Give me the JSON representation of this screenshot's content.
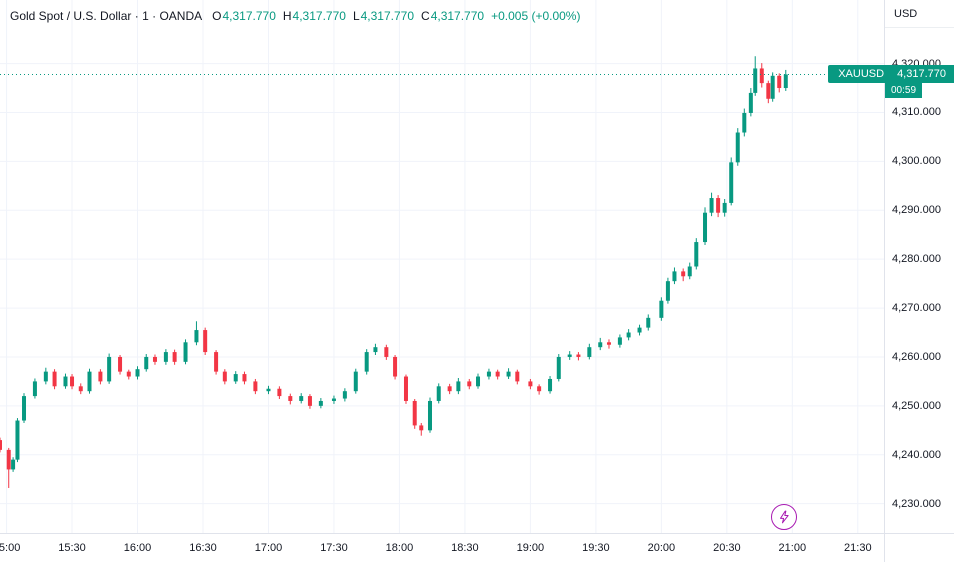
{
  "legend": {
    "title": "Gold Spot / U.S. Dollar",
    "interval": "1",
    "exchange": "OANDA",
    "separator": "·",
    "ohlc": [
      {
        "label": "O",
        "value": "4,317.770"
      },
      {
        "label": "H",
        "value": "4,317.770"
      },
      {
        "label": "L",
        "value": "4,317.770"
      },
      {
        "label": "C",
        "value": "4,317.770"
      }
    ],
    "change": "+0.005 (+0.00%)"
  },
  "price_scale": {
    "currency": "USD",
    "ticks": [
      {
        "label": "4,320.000",
        "value": 4320
      },
      {
        "label": "4,310.000",
        "value": 4310
      },
      {
        "label": "4,300.000",
        "value": 4300
      },
      {
        "label": "4,290.000",
        "value": 4290
      },
      {
        "label": "4,280.000",
        "value": 4280
      },
      {
        "label": "4,270.000",
        "value": 4270
      },
      {
        "label": "4,260.000",
        "value": 4260
      },
      {
        "label": "4,250.000",
        "value": 4250
      },
      {
        "label": "4,240.000",
        "value": 4240
      },
      {
        "label": "4,230.000",
        "value": 4230
      }
    ]
  },
  "time_scale": {
    "ticks": [
      {
        "label": "15:00",
        "time": "15:00"
      },
      {
        "label": "15:30",
        "time": "15:30"
      },
      {
        "label": "16:00",
        "time": "16:00"
      },
      {
        "label": "16:30",
        "time": "16:30"
      },
      {
        "label": "17:00",
        "time": "17:00"
      },
      {
        "label": "17:30",
        "time": "17:30"
      },
      {
        "label": "18:00",
        "time": "18:00"
      },
      {
        "label": "18:30",
        "time": "18:30"
      },
      {
        "label": "19:00",
        "time": "19:00"
      },
      {
        "label": "19:30",
        "time": "19:30"
      },
      {
        "label": "20:00",
        "time": "20:00"
      },
      {
        "label": "20:30",
        "time": "20:30"
      },
      {
        "label": "21:00",
        "time": "21:00"
      },
      {
        "label": "21:30",
        "time": "21:30"
      }
    ]
  },
  "last_price": {
    "symbol": "XAUUSD",
    "price_label": "4,317.770",
    "price": 4317.77,
    "countdown": "00:59"
  },
  "colors": {
    "up": "#089981",
    "down": "#f23645",
    "accent": "#089981",
    "badge_text": "#ffffff",
    "text": "#131722",
    "grid": "#f0f3fa",
    "axis_border": "#e0e3eb",
    "lightning": "#a81ab2"
  },
  "chart_data": {
    "type": "candlestick",
    "title": "Gold Spot / U.S. Dollar (XAUUSD) 1-minute, OANDA",
    "ylabel": "Price (USD)",
    "ylim": [
      4224,
      4333
    ],
    "x_domain": {
      "start": "14:57",
      "end": "21:42"
    },
    "grid": true,
    "last_close": 4317.77,
    "columns": [
      "time",
      "open",
      "high",
      "low",
      "close"
    ],
    "candles": [
      [
        "14:57",
        4243.0,
        4243.5,
        4240.5,
        4241.0
      ],
      [
        "15:01",
        4241.0,
        4241.4,
        4233.2,
        4237.0
      ],
      [
        "15:03",
        4237.0,
        4239.5,
        4236.5,
        4239.0
      ],
      [
        "15:05",
        4239.0,
        4247.5,
        4238.5,
        4247.0
      ],
      [
        "15:08",
        4247.0,
        4252.6,
        4246.5,
        4252.0
      ],
      [
        "15:13",
        4252.0,
        4255.6,
        4251.5,
        4255.0
      ],
      [
        "15:18",
        4255.0,
        4257.8,
        4254.4,
        4257.0
      ],
      [
        "15:22",
        4257.0,
        4257.5,
        4253.4,
        4254.0
      ],
      [
        "15:27",
        4254.0,
        4256.6,
        4253.5,
        4256.0
      ],
      [
        "15:30",
        4256.0,
        4256.5,
        4253.4,
        4254.0
      ],
      [
        "15:34",
        4254.0,
        4254.6,
        4252.4,
        4253.0
      ],
      [
        "15:38",
        4253.0,
        4257.6,
        4252.5,
        4257.0
      ],
      [
        "15:43",
        4257.0,
        4257.5,
        4254.4,
        4255.0
      ],
      [
        "15:47",
        4255.0,
        4260.7,
        4254.5,
        4260.0
      ],
      [
        "15:52",
        4260.0,
        4260.4,
        4256.4,
        4257.0
      ],
      [
        "15:56",
        4257.0,
        4257.4,
        4255.4,
        4256.0
      ],
      [
        "16:00",
        4256.0,
        4258.1,
        4255.4,
        4257.5
      ],
      [
        "16:04",
        4257.5,
        4260.6,
        4257.0,
        4260.0
      ],
      [
        "16:08",
        4260.0,
        4260.5,
        4258.4,
        4259.0
      ],
      [
        "16:13",
        4259.0,
        4261.6,
        4258.4,
        4261.0
      ],
      [
        "16:17",
        4261.0,
        4261.5,
        4258.4,
        4259.0
      ],
      [
        "16:22",
        4259.0,
        4263.6,
        4258.5,
        4263.0
      ],
      [
        "16:27",
        4263.0,
        4267.3,
        4262.4,
        4265.5
      ],
      [
        "16:31",
        4265.5,
        4266.0,
        4260.4,
        4261.0
      ],
      [
        "16:36",
        4261.0,
        4261.4,
        4256.4,
        4257.0
      ],
      [
        "16:40",
        4257.0,
        4257.5,
        4254.4,
        4255.0
      ],
      [
        "16:45",
        4255.0,
        4257.1,
        4254.5,
        4256.5
      ],
      [
        "16:49",
        4256.5,
        4257.0,
        4254.4,
        4255.0
      ],
      [
        "16:54",
        4255.0,
        4255.5,
        4252.4,
        4253.0
      ],
      [
        "17:00",
        4253.0,
        4254.1,
        4252.4,
        4253.5
      ],
      [
        "17:05",
        4253.5,
        4254.0,
        4251.4,
        4252.0
      ],
      [
        "17:10",
        4252.0,
        4252.5,
        4250.3,
        4251.0
      ],
      [
        "17:15",
        4251.0,
        4252.6,
        4250.5,
        4252.0
      ],
      [
        "17:19",
        4252.0,
        4252.4,
        4249.4,
        4250.0
      ],
      [
        "17:24",
        4250.0,
        4251.6,
        4249.5,
        4251.0
      ],
      [
        "17:30",
        4251.0,
        4252.1,
        4250.4,
        4251.5
      ],
      [
        "17:35",
        4251.5,
        4253.6,
        4250.9,
        4253.0
      ],
      [
        "17:40",
        4253.0,
        4257.6,
        4252.5,
        4257.0
      ],
      [
        "17:45",
        4257.0,
        4261.6,
        4256.4,
        4261.0
      ],
      [
        "17:49",
        4261.0,
        4262.7,
        4260.4,
        4262.0
      ],
      [
        "17:54",
        4262.0,
        4262.5,
        4259.4,
        4260.0
      ],
      [
        "17:58",
        4260.0,
        4260.4,
        4255.4,
        4256.0
      ],
      [
        "18:03",
        4256.0,
        4256.4,
        4250.4,
        4251.0
      ],
      [
        "18:07",
        4251.0,
        4251.4,
        4245.3,
        4246.0
      ],
      [
        "18:10",
        4246.0,
        4246.5,
        4243.9,
        4245.0
      ],
      [
        "18:14",
        4245.0,
        4251.7,
        4244.5,
        4251.0
      ],
      [
        "18:18",
        4251.0,
        4254.6,
        4250.5,
        4254.0
      ],
      [
        "18:23",
        4254.0,
        4254.5,
        4252.4,
        4253.0
      ],
      [
        "18:27",
        4253.0,
        4255.7,
        4252.4,
        4255.0
      ],
      [
        "18:32",
        4255.0,
        4255.5,
        4253.4,
        4254.0
      ],
      [
        "18:36",
        4254.0,
        4256.6,
        4253.5,
        4256.0
      ],
      [
        "18:41",
        4256.0,
        4257.6,
        4255.4,
        4257.0
      ],
      [
        "18:45",
        4257.0,
        4257.4,
        4255.4,
        4256.0
      ],
      [
        "18:50",
        4256.0,
        4257.7,
        4255.5,
        4257.0
      ],
      [
        "18:54",
        4257.0,
        4257.4,
        4254.4,
        4255.0
      ],
      [
        "19:00",
        4255.0,
        4255.5,
        4253.4,
        4254.0
      ],
      [
        "19:04",
        4254.0,
        4254.4,
        4252.3,
        4253.0
      ],
      [
        "19:09",
        4253.0,
        4256.1,
        4252.5,
        4255.5
      ],
      [
        "19:13",
        4255.5,
        4260.6,
        4255.0,
        4260.0
      ],
      [
        "19:18",
        4260.0,
        4261.2,
        4259.4,
        4260.5
      ],
      [
        "19:22",
        4260.5,
        4261.0,
        4259.3,
        4260.0
      ],
      [
        "19:27",
        4260.0,
        4262.7,
        4259.5,
        4262.0
      ],
      [
        "19:32",
        4262.0,
        4263.9,
        4261.4,
        4263.0
      ],
      [
        "19:36",
        4263.0,
        4263.6,
        4261.7,
        4262.5
      ],
      [
        "19:41",
        4262.5,
        4264.6,
        4261.9,
        4264.0
      ],
      [
        "19:45",
        4264.0,
        4265.7,
        4263.4,
        4265.0
      ],
      [
        "19:50",
        4265.0,
        4266.6,
        4264.4,
        4266.0
      ],
      [
        "19:54",
        4266.0,
        4268.7,
        4265.4,
        4268.0
      ],
      [
        "20:00",
        4268.0,
        4272.2,
        4267.4,
        4271.5
      ],
      [
        "20:03",
        4271.5,
        4276.2,
        4270.9,
        4275.5
      ],
      [
        "20:06",
        4275.5,
        4278.3,
        4274.9,
        4277.5
      ],
      [
        "20:10",
        4277.5,
        4278.1,
        4275.5,
        4276.5
      ],
      [
        "20:13",
        4276.5,
        4279.3,
        4275.9,
        4278.5
      ],
      [
        "20:16",
        4278.5,
        4284.3,
        4277.9,
        4283.5
      ],
      [
        "20:20",
        4283.5,
        4290.6,
        4282.9,
        4289.5
      ],
      [
        "20:23",
        4289.5,
        4293.6,
        4288.8,
        4292.5
      ],
      [
        "20:26",
        4292.5,
        4293.1,
        4288.6,
        4289.5
      ],
      [
        "20:29",
        4289.5,
        4292.3,
        4288.7,
        4291.5
      ],
      [
        "20:32",
        4291.5,
        4300.8,
        4291.0,
        4299.8
      ],
      [
        "20:35",
        4299.8,
        4306.8,
        4299.1,
        4305.9
      ],
      [
        "20:38",
        4305.9,
        4310.8,
        4305.1,
        4309.9
      ],
      [
        "20:41",
        4309.9,
        4315.0,
        4309.2,
        4314.0
      ],
      [
        "20:43",
        4314.0,
        4321.5,
        4313.4,
        4319.0
      ],
      [
        "20:46",
        4319.0,
        4320.1,
        4315.1,
        4316.0
      ],
      [
        "20:49",
        4316.0,
        4316.5,
        4311.9,
        4312.8
      ],
      [
        "20:51",
        4312.8,
        4318.2,
        4312.2,
        4317.5
      ],
      [
        "20:54",
        4317.5,
        4318.0,
        4314.1,
        4315.0
      ],
      [
        "20:57",
        4315.0,
        4318.7,
        4314.4,
        4317.77
      ]
    ]
  }
}
